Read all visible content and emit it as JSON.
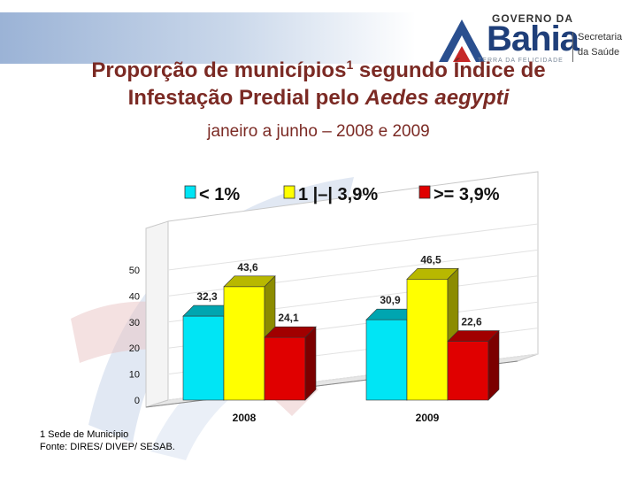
{
  "header": {
    "logo": {
      "line1": "GOVERNO DA",
      "line2": "Bahia",
      "line3a": "Secretaria",
      "line3b": "da Saúde",
      "tagline": "TERRA DA FELICIDADE"
    },
    "title_pre": "Proporção de municípios",
    "title_sup": "1",
    "title_post": " segundo Índice de",
    "title_line2_pre": "Infestação Predial pelo ",
    "title_line2_em": "Aedes aegypti",
    "subtitle": "janeiro a junho – 2008 e 2009"
  },
  "notes": {
    "footnote": "1 Sede de Município",
    "source": "Fonte: DIRES/ DIVEP/ SESAB."
  },
  "colors": {
    "cyan": "#00e5f5",
    "yellow": "#ffff00",
    "red": "#e00000",
    "title": "#7b2a24"
  },
  "chart_data": {
    "type": "bar",
    "categories": [
      "2008",
      "2009"
    ],
    "series": [
      {
        "name": "< 1%",
        "values": [
          32.3,
          30.9
        ]
      },
      {
        "name": "1 |–| 3,9%",
        "values": [
          43.6,
          46.5
        ]
      },
      {
        "name": ">= 3,9%",
        "values": [
          24.1,
          22.6
        ]
      }
    ],
    "value_labels": [
      [
        "32,3",
        "30,9"
      ],
      [
        "43,6",
        "46,5"
      ],
      [
        "24,1",
        "22,6"
      ]
    ],
    "y_ticks": [
      "0",
      "10",
      "20",
      "30",
      "40",
      "50"
    ],
    "ylim": [
      0,
      50
    ],
    "legend_position": "top",
    "grid": true,
    "style": "3d"
  }
}
